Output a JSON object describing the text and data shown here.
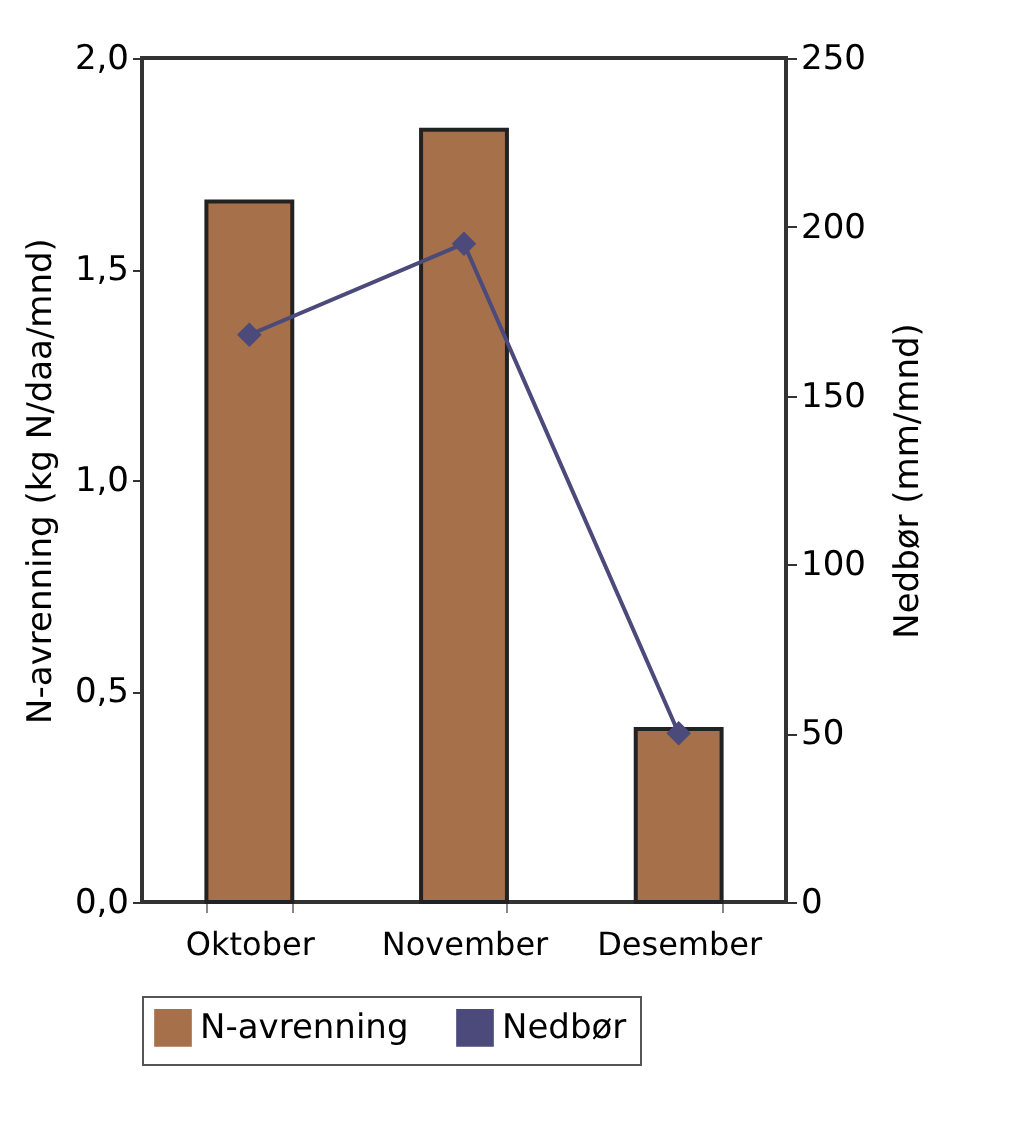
{
  "chart_data": {
    "type": "bar",
    "xlabel": null,
    "ylabel": "N-avrenning (kg N/daa/mnd)",
    "y2label": "Nedbør (mm/mnd)",
    "categories": [
      "Oktober",
      "November",
      "Desember"
    ],
    "series": [
      {
        "name": "N-avrenning",
        "color": "#a5704a",
        "values": [
          1.66,
          1.83,
          0.41
        ]
      },
      {
        "name": "Nedbør",
        "type": "line",
        "axis": "y2",
        "color": "#4b4a7a",
        "values": [
          168,
          195,
          50
        ],
        "marker": "diamond"
      }
    ],
    "ylim": [
      0,
      2
    ],
    "yticks": [
      {
        "value": 0,
        "label": "0,0"
      },
      {
        "value": 0.5,
        "label": "0,5"
      },
      {
        "value": 1,
        "label": "1,0"
      },
      {
        "value": 1.5,
        "label": "1,5"
      },
      {
        "value": 2,
        "label": "2,0"
      }
    ],
    "y2lim": [
      0,
      250
    ],
    "y2ticks": [
      0,
      50,
      100,
      150,
      200,
      250
    ],
    "grid": false,
    "legend": "bottom"
  }
}
